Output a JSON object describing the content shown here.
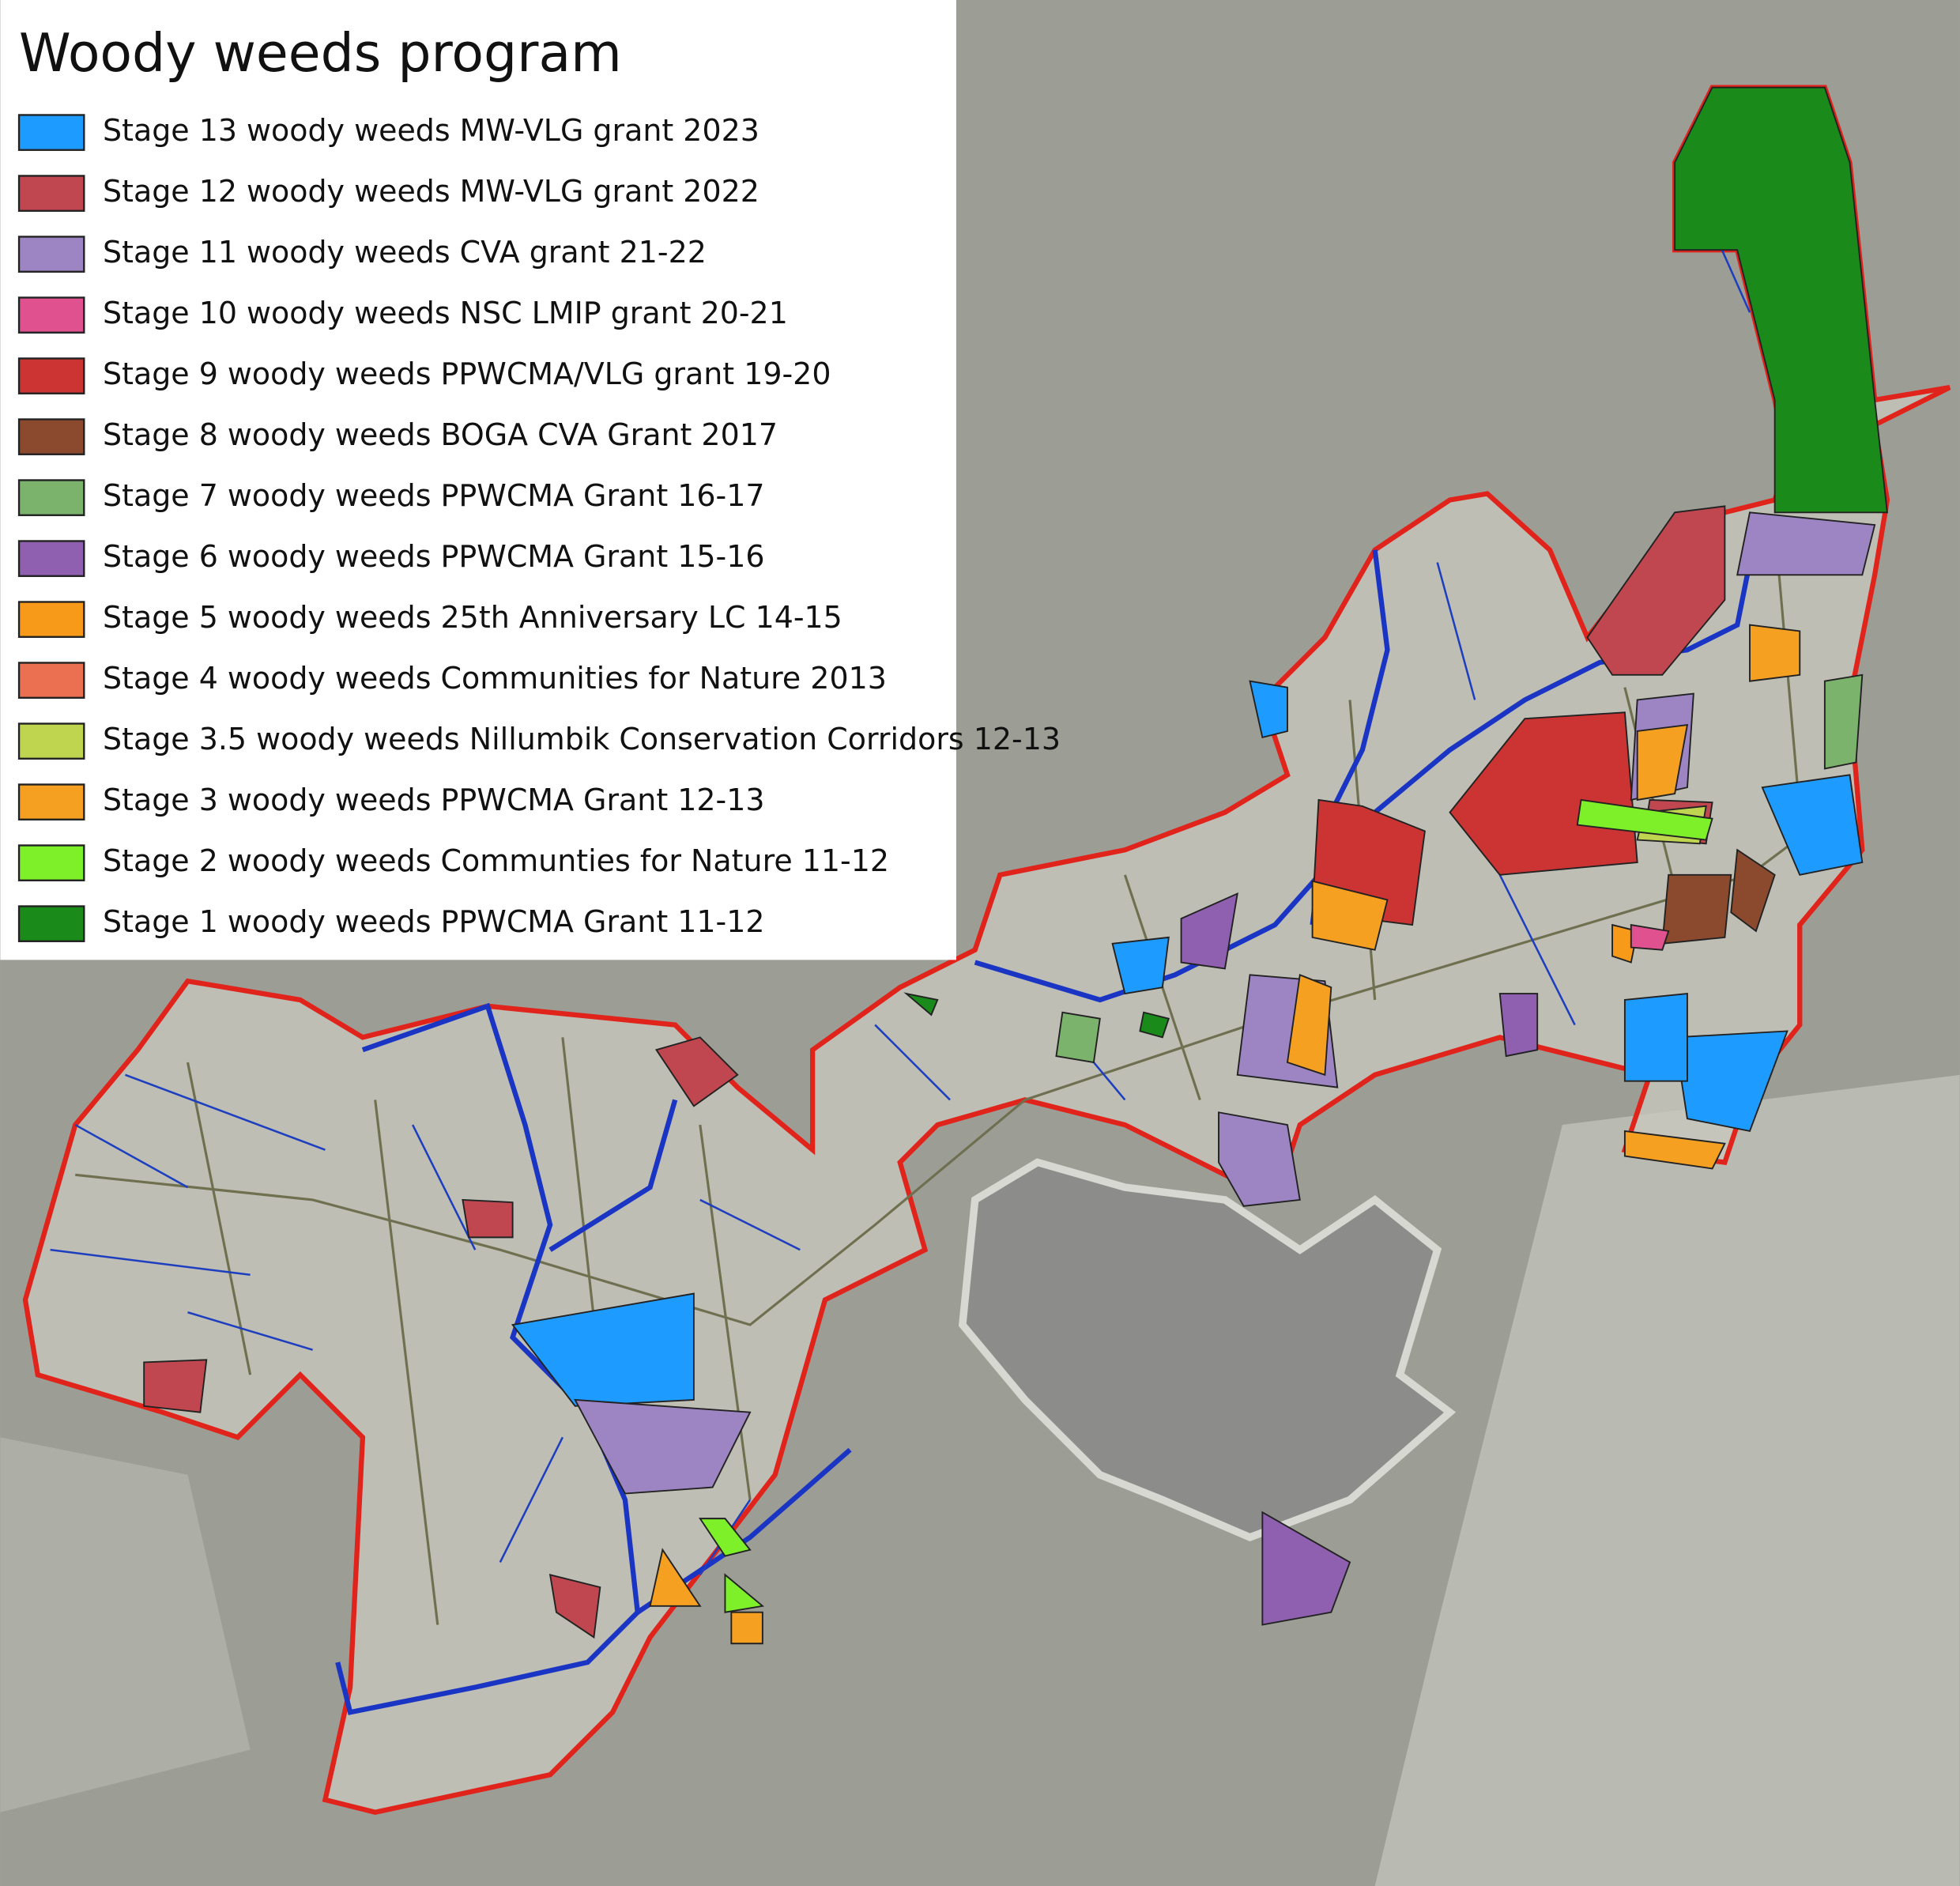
{
  "title": "Woody weeds program",
  "legend": [
    {
      "label": "Stage 13 woody weeds MW-VLG grant 2023",
      "color": "#1e9bff"
    },
    {
      "label": "Stage 12 woody weeds MW-VLG grant 2022",
      "color": "#c0474f"
    },
    {
      "label": "Stage 11 woody weeds CVA grant 21-22",
      "color": "#9d85c4"
    },
    {
      "label": "Stage 10 woody weeds NSC LMIP grant 20-21",
      "color": "#e0528f"
    },
    {
      "label": "Stage 9 woody weeds PPWCMA/VLG grant 19-20",
      "color": "#cc3333"
    },
    {
      "label": "Stage 8 woody weeds BOGA CVA Grant 2017",
      "color": "#8b4a2e"
    },
    {
      "label": "Stage 7 woody weeds PPWCMA Grant 16-17",
      "color": "#7bb36c"
    },
    {
      "label": "Stage 6 woody weeds PPWCMA Grant 15-16",
      "color": "#8f5fb0"
    },
    {
      "label": "Stage 5 woody weeds 25th Anniversary LC 14-15",
      "color": "#f79a1a"
    },
    {
      "label": "Stage 4 woody weeds Communities for Nature 2013",
      "color": "#eb7052"
    },
    {
      "label": "Stage 3.5 woody weeds Nillumbik Conservation Corridors 12-13",
      "color": "#bfd44f"
    },
    {
      "label": "Stage 3 woody weeds PPWCMA Grant 12-13",
      "color": "#f5a020"
    },
    {
      "label": "Stage 2 woody weeds Communties for Nature 11-12",
      "color": "#7ef02a"
    },
    {
      "label": "Stage 1 woody weeds PPWCMA Grant 11-12",
      "color": "#1a8a1a"
    }
  ]
}
